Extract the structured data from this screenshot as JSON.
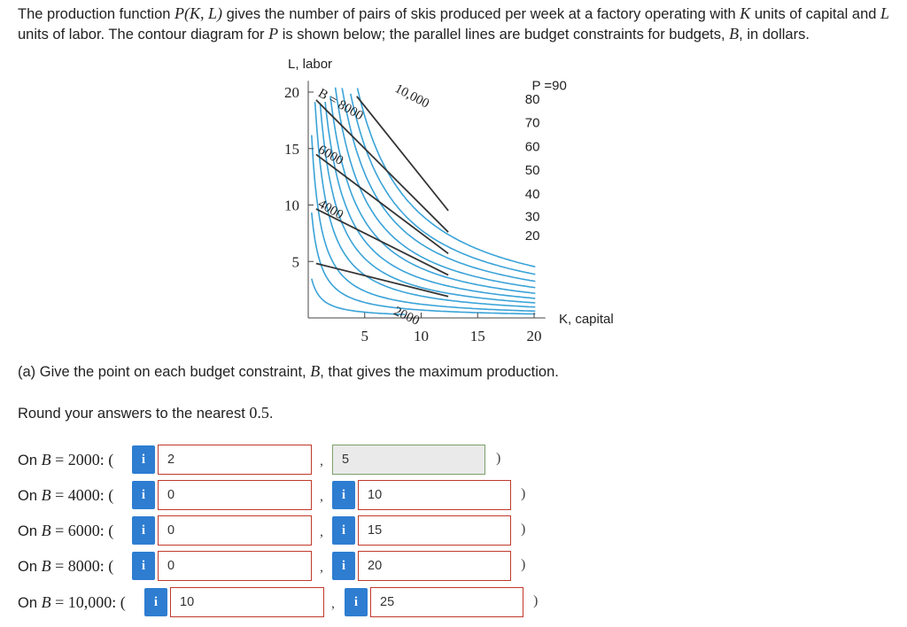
{
  "intro": {
    "p1": "The production function ",
    "fn": "P(K, L)",
    "p2": " gives the number of pairs of skis produced per week at a factory operating with ",
    "k": "K",
    "p3": " units of capital and ",
    "l": "L",
    "p4": " units of labor. The contour diagram for ",
    "p": "P",
    "p5": " is shown below; the parallel lines are budget constraints for budgets, ",
    "b": "B",
    "p6": ", in dollars."
  },
  "chart_data": {
    "type": "contour",
    "xlabel": "K, capital",
    "ylabel": "L, labor",
    "xlim": [
      0,
      20
    ],
    "ylim": [
      0,
      20
    ],
    "x_ticks": [
      "5",
      "10",
      "15",
      "20"
    ],
    "y_ticks": [
      "5",
      "10",
      "15",
      "20"
    ],
    "contour_levels": [
      "P =90",
      "80",
      "70",
      "60",
      "50",
      "40",
      "30",
      "20"
    ],
    "budget_lines": [
      {
        "label": "2000",
        "B": 2000,
        "x_intercept": 20,
        "y_intercept": 5
      },
      {
        "label": "4000",
        "B": 4000,
        "x_intercept": 20,
        "y_intercept": 10
      },
      {
        "label": "6000",
        "B": 6000,
        "x_intercept": 20,
        "y_intercept": 15
      },
      {
        "label": "B = 8000",
        "B": 8000,
        "x_intercept": 20,
        "y_intercept": 20
      },
      {
        "label": "10,000",
        "B": 10000,
        "x_intercept": 20,
        "y_intercept": 25
      }
    ]
  },
  "question": {
    "part_a_pre": "(a) Give the point on each budget constraint, ",
    "part_a_b": "B",
    "part_a_post": ", that gives the maximum production.",
    "round_pre": "Round your answers to the nearest ",
    "round_val": "0.5",
    "round_post": "."
  },
  "answers": [
    {
      "pre": "On ",
      "b": "B",
      "eq": " = ",
      "budget": "2000",
      "open": ": (",
      "k": "2",
      "l": "5",
      "close": ")"
    },
    {
      "pre": "On ",
      "b": "B",
      "eq": " = ",
      "budget": "4000",
      "open": ": (",
      "k": "0",
      "l": "10",
      "close": ")"
    },
    {
      "pre": "On ",
      "b": "B",
      "eq": " = ",
      "budget": "6000",
      "open": ": (",
      "k": "0",
      "l": "15",
      "close": ")"
    },
    {
      "pre": "On ",
      "b": "B",
      "eq": " = ",
      "budget": "8000",
      "open": ": (",
      "k": "0",
      "l": "20",
      "close": ")"
    },
    {
      "pre": "On ",
      "b": "B",
      "eq": " = ",
      "budget": "10,000",
      "open": ": (",
      "k": "10",
      "l": "25",
      "close": ")"
    }
  ],
  "ui": {
    "info_glyph": "i",
    "comma": ","
  },
  "colors": {
    "contour": "#3aa3d8",
    "budget_line": "#333333",
    "info_button": "#2e7dd1",
    "wrong_border": "#c0392b",
    "correct_border": "#7aa06a"
  }
}
